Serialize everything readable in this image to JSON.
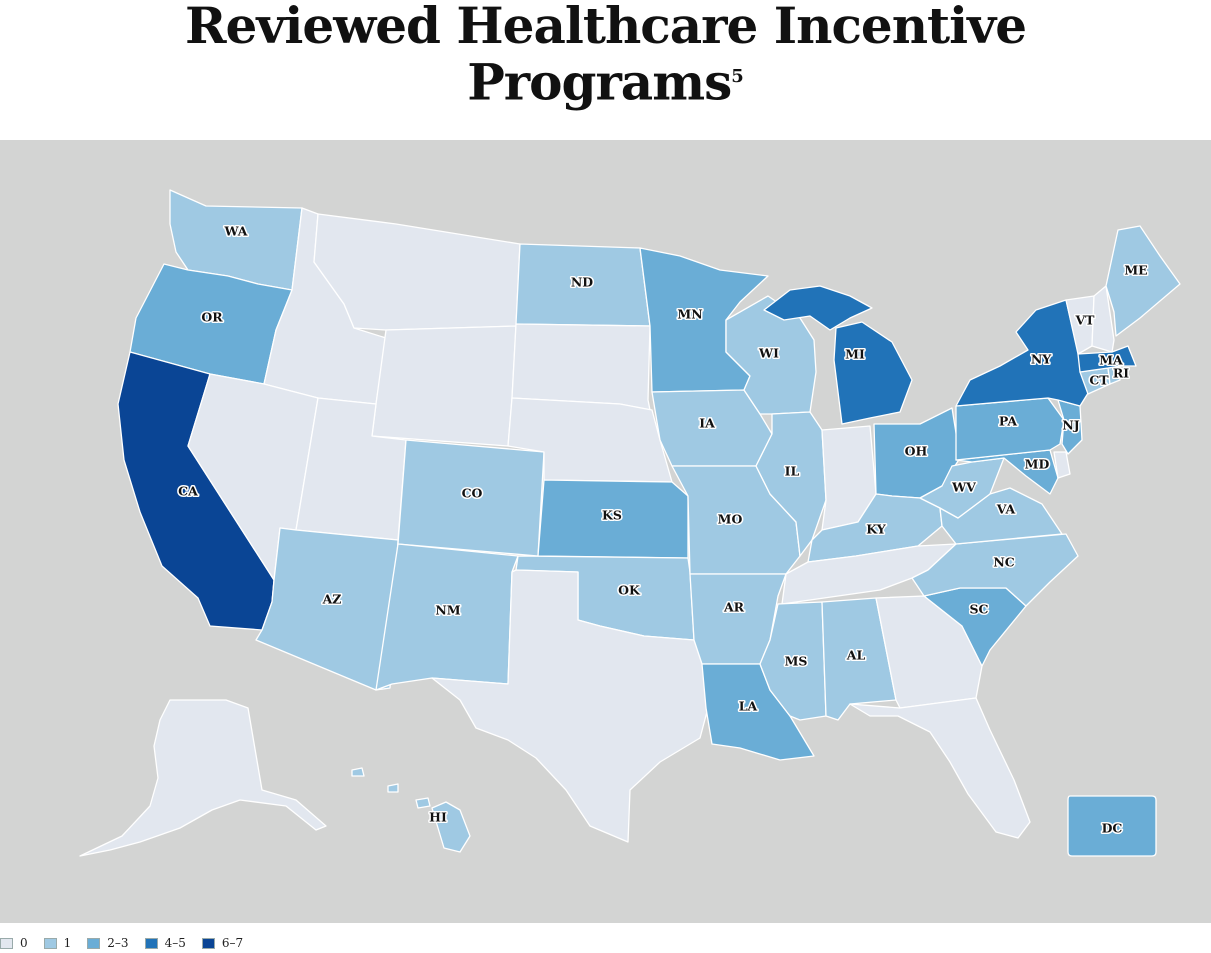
{
  "title": {
    "line1": "Reviewed Healthcare Incentive",
    "line2": "Programs",
    "footnote": "5"
  },
  "colors": {
    "background": "#d3d4d3",
    "border": "#ffffff",
    "bin_0": "#e2e7ef",
    "bin_1": "#9fc9e3",
    "bin_2_3": "#6aadd6",
    "bin_4_5": "#2173b8",
    "bin_6_7": "#0a4595"
  },
  "legend": [
    {
      "label": "0",
      "bin": "bin_0"
    },
    {
      "label": "1",
      "bin": "bin_1"
    },
    {
      "label": "2–3",
      "bin": "bin_2_3"
    },
    {
      "label": "4–5",
      "bin": "bin_4_5"
    },
    {
      "label": "6–7",
      "bin": "bin_6_7"
    }
  ],
  "states": [
    {
      "abbr": "WA",
      "bin": "bin_1",
      "labeled": true
    },
    {
      "abbr": "OR",
      "bin": "bin_2_3",
      "labeled": true
    },
    {
      "abbr": "CA",
      "bin": "bin_6_7",
      "labeled": true
    },
    {
      "abbr": "ID",
      "bin": "bin_0",
      "labeled": false
    },
    {
      "abbr": "NV",
      "bin": "bin_0",
      "labeled": false
    },
    {
      "abbr": "MT",
      "bin": "bin_0",
      "labeled": false
    },
    {
      "abbr": "WY",
      "bin": "bin_0",
      "labeled": false
    },
    {
      "abbr": "UT",
      "bin": "bin_0",
      "labeled": false
    },
    {
      "abbr": "AZ",
      "bin": "bin_1",
      "labeled": true
    },
    {
      "abbr": "CO",
      "bin": "bin_1",
      "labeled": true
    },
    {
      "abbr": "NM",
      "bin": "bin_1",
      "labeled": true
    },
    {
      "abbr": "ND",
      "bin": "bin_1",
      "labeled": true
    },
    {
      "abbr": "SD",
      "bin": "bin_0",
      "labeled": false
    },
    {
      "abbr": "NE",
      "bin": "bin_0",
      "labeled": false
    },
    {
      "abbr": "KS",
      "bin": "bin_2_3",
      "labeled": true
    },
    {
      "abbr": "OK",
      "bin": "bin_1",
      "labeled": true
    },
    {
      "abbr": "TX",
      "bin": "bin_0",
      "labeled": false
    },
    {
      "abbr": "MN",
      "bin": "bin_2_3",
      "labeled": true
    },
    {
      "abbr": "IA",
      "bin": "bin_1",
      "labeled": true
    },
    {
      "abbr": "MO",
      "bin": "bin_1",
      "labeled": true
    },
    {
      "abbr": "AR",
      "bin": "bin_1",
      "labeled": true
    },
    {
      "abbr": "LA",
      "bin": "bin_2_3",
      "labeled": true
    },
    {
      "abbr": "WI",
      "bin": "bin_1",
      "labeled": true
    },
    {
      "abbr": "IL",
      "bin": "bin_1",
      "labeled": true
    },
    {
      "abbr": "MI",
      "bin": "bin_4_5",
      "labeled": true
    },
    {
      "abbr": "IN",
      "bin": "bin_0",
      "labeled": false
    },
    {
      "abbr": "OH",
      "bin": "bin_2_3",
      "labeled": true
    },
    {
      "abbr": "KY",
      "bin": "bin_1",
      "labeled": true
    },
    {
      "abbr": "TN",
      "bin": "bin_0",
      "labeled": false
    },
    {
      "abbr": "MS",
      "bin": "bin_1",
      "labeled": true
    },
    {
      "abbr": "AL",
      "bin": "bin_1",
      "labeled": true
    },
    {
      "abbr": "GA",
      "bin": "bin_0",
      "labeled": false
    },
    {
      "abbr": "FL",
      "bin": "bin_0",
      "labeled": false
    },
    {
      "abbr": "SC",
      "bin": "bin_2_3",
      "labeled": true
    },
    {
      "abbr": "NC",
      "bin": "bin_1",
      "labeled": true
    },
    {
      "abbr": "VA",
      "bin": "bin_1",
      "labeled": true
    },
    {
      "abbr": "WV",
      "bin": "bin_1",
      "labeled": true
    },
    {
      "abbr": "MD",
      "bin": "bin_2_3",
      "labeled": true
    },
    {
      "abbr": "DE",
      "bin": "bin_0",
      "labeled": false
    },
    {
      "abbr": "PA",
      "bin": "bin_2_3",
      "labeled": true
    },
    {
      "abbr": "NJ",
      "bin": "bin_2_3",
      "labeled": true
    },
    {
      "abbr": "NY",
      "bin": "bin_4_5",
      "labeled": true
    },
    {
      "abbr": "CT",
      "bin": "bin_1",
      "labeled": true
    },
    {
      "abbr": "RI",
      "bin": "bin_1",
      "labeled": true
    },
    {
      "abbr": "MA",
      "bin": "bin_4_5",
      "labeled": true
    },
    {
      "abbr": "VT",
      "bin": "bin_0",
      "labeled": true
    },
    {
      "abbr": "NH",
      "bin": "bin_0",
      "labeled": false
    },
    {
      "abbr": "ME",
      "bin": "bin_1",
      "labeled": true
    },
    {
      "abbr": "AK",
      "bin": "bin_0",
      "labeled": false
    },
    {
      "abbr": "HI",
      "bin": "bin_1",
      "labeled": true
    },
    {
      "abbr": "DC",
      "bin": "bin_2_3",
      "labeled": true
    }
  ]
}
